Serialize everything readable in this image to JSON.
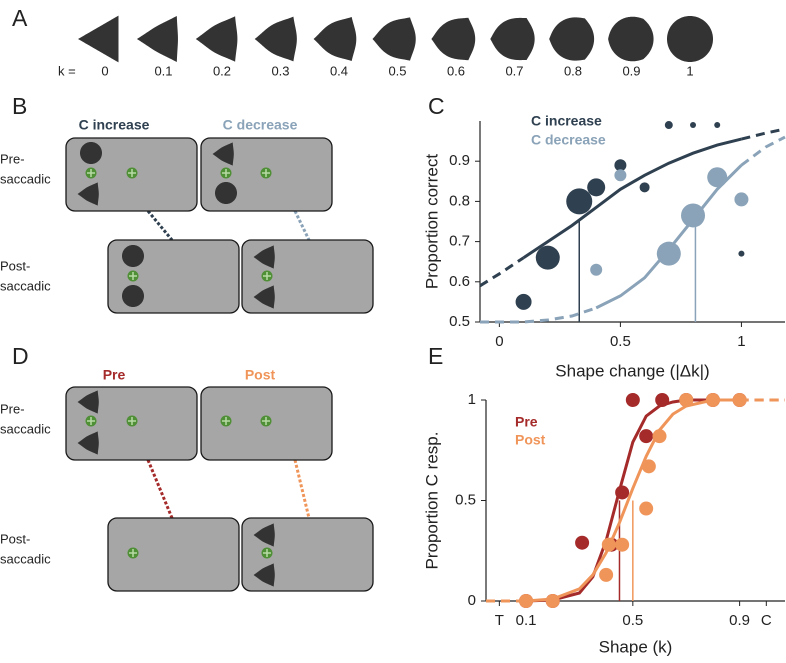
{
  "panel_labels": [
    "A",
    "B",
    "C",
    "D",
    "E"
  ],
  "panel_a": {
    "k_label": "k =",
    "k_values": [
      0,
      0.1,
      0.2,
      0.3,
      0.4,
      0.5,
      0.6,
      0.7,
      0.8,
      0.9,
      1
    ],
    "color": "#333333"
  },
  "panel_b": {
    "headers": [
      "C increase",
      "C decrease"
    ],
    "header_colors": [
      "#2f4050",
      "#8aa3b8"
    ],
    "row_labels": [
      [
        "Pre-",
        "saccadic"
      ],
      [
        "Post-",
        "saccadic"
      ]
    ]
  },
  "panel_d": {
    "headers": [
      "Pre",
      "Post"
    ],
    "header_colors": [
      "#a52a2a",
      "#f0955a"
    ],
    "row_labels": [
      [
        "Pre-",
        "saccadic"
      ],
      [
        "Post-",
        "saccadic"
      ]
    ]
  },
  "chart_data": [
    {
      "type": "scatter",
      "ylabel": "Proportion correct",
      "xlabel": "Shape change (|Δk|)",
      "xlim": [
        -0.08,
        1.18
      ],
      "ylim": [
        0.5,
        1.0
      ],
      "xticks": [
        0,
        0.5,
        1
      ],
      "yticks": [
        0.5,
        0.6,
        0.7,
        0.8,
        0.9
      ],
      "series": [
        {
          "name": "C increase",
          "color": "#2f4050",
          "x": [
            0.1,
            0.2,
            0.33,
            0.4,
            0.5,
            0.6,
            0.7,
            0.8,
            0.9,
            1.0
          ],
          "values": [
            0.55,
            0.66,
            0.8,
            0.835,
            0.89,
            0.835,
            0.99,
            0.99,
            0.99,
            0.67
          ],
          "sizes": [
            8,
            12,
            13,
            9,
            6,
            5,
            4,
            3,
            3,
            3
          ],
          "fit": {
            "x": [
              -0.08,
              0,
              0.1,
              0.2,
              0.3,
              0.4,
              0.5,
              0.6,
              0.7,
              0.8,
              0.9,
              1.0,
              1.1,
              1.18
            ],
            "values": [
              0.59,
              0.62,
              0.66,
              0.7,
              0.74,
              0.785,
              0.83,
              0.865,
              0.895,
              0.92,
              0.94,
              0.955,
              0.97,
              0.98
            ]
          },
          "threshold": {
            "x": 0.33,
            "value": 0.75
          }
        },
        {
          "name": "C decrease",
          "color": "#8aa3b8",
          "x": [
            0.4,
            0.5,
            0.7,
            0.8,
            0.9,
            1.0
          ],
          "values": [
            0.63,
            0.865,
            0.67,
            0.765,
            0.86,
            0.805
          ],
          "sizes": [
            6,
            6,
            12,
            12,
            10,
            7
          ],
          "fit": {
            "x": [
              -0.08,
              0,
              0.1,
              0.2,
              0.3,
              0.4,
              0.5,
              0.6,
              0.7,
              0.8,
              0.9,
              1.0,
              1.1,
              1.18
            ],
            "values": [
              0.5,
              0.5,
              0.5,
              0.505,
              0.515,
              0.535,
              0.565,
              0.61,
              0.68,
              0.755,
              0.83,
              0.89,
              0.935,
              0.96
            ]
          },
          "threshold": {
            "x": 0.81,
            "value": 0.75
          }
        }
      ]
    },
    {
      "type": "scatter",
      "ylabel": "Proportion C resp.",
      "xlabel": "Shape (k)",
      "xlim": [
        -0.05,
        1.07
      ],
      "ylim": [
        0,
        1
      ],
      "xticks": [
        {
          "value": 0,
          "label": "T"
        },
        0.1,
        0.5,
        0.9,
        {
          "value": 1,
          "label": "C"
        }
      ],
      "yticks": [
        0,
        0.5,
        1
      ],
      "series": [
        {
          "name": "Pre",
          "color": "#a52a2a",
          "x": [
            0.1,
            0.2,
            0.31,
            0.42,
            0.46,
            0.5,
            0.55,
            0.61,
            0.7,
            0.8,
            0.9
          ],
          "values": [
            0,
            0,
            0.29,
            0.28,
            0.54,
            1,
            0.82,
            1,
            1,
            1,
            1
          ],
          "fit": {
            "x": [
              -0.05,
              0,
              0.1,
              0.2,
              0.3,
              0.35,
              0.4,
              0.45,
              0.5,
              0.55,
              0.6,
              0.65,
              0.7,
              0.8,
              0.9,
              1.07
            ],
            "values": [
              0,
              0,
              0,
              0.005,
              0.04,
              0.12,
              0.3,
              0.55,
              0.79,
              0.92,
              0.97,
              0.99,
              1,
              1,
              1,
              1
            ]
          },
          "threshold": {
            "x": 0.45,
            "value": 0.5
          }
        },
        {
          "name": "Post",
          "color": "#f0955a",
          "x": [
            0.1,
            0.2,
            0.4,
            0.41,
            0.46,
            0.55,
            0.56,
            0.6,
            0.7,
            0.8,
            0.9
          ],
          "values": [
            0,
            0,
            0.13,
            0.28,
            0.28,
            0.46,
            0.67,
            0.82,
            1,
            1,
            1
          ],
          "fit": {
            "x": [
              -0.05,
              0,
              0.1,
              0.2,
              0.3,
              0.35,
              0.4,
              0.45,
              0.5,
              0.55,
              0.6,
              0.65,
              0.7,
              0.8,
              0.9,
              1.07
            ],
            "values": [
              0,
              0,
              0,
              0.01,
              0.06,
              0.13,
              0.24,
              0.39,
              0.56,
              0.72,
              0.85,
              0.93,
              0.97,
              1,
              1,
              1
            ]
          },
          "threshold": {
            "x": 0.5,
            "value": 0.5
          }
        }
      ]
    }
  ]
}
